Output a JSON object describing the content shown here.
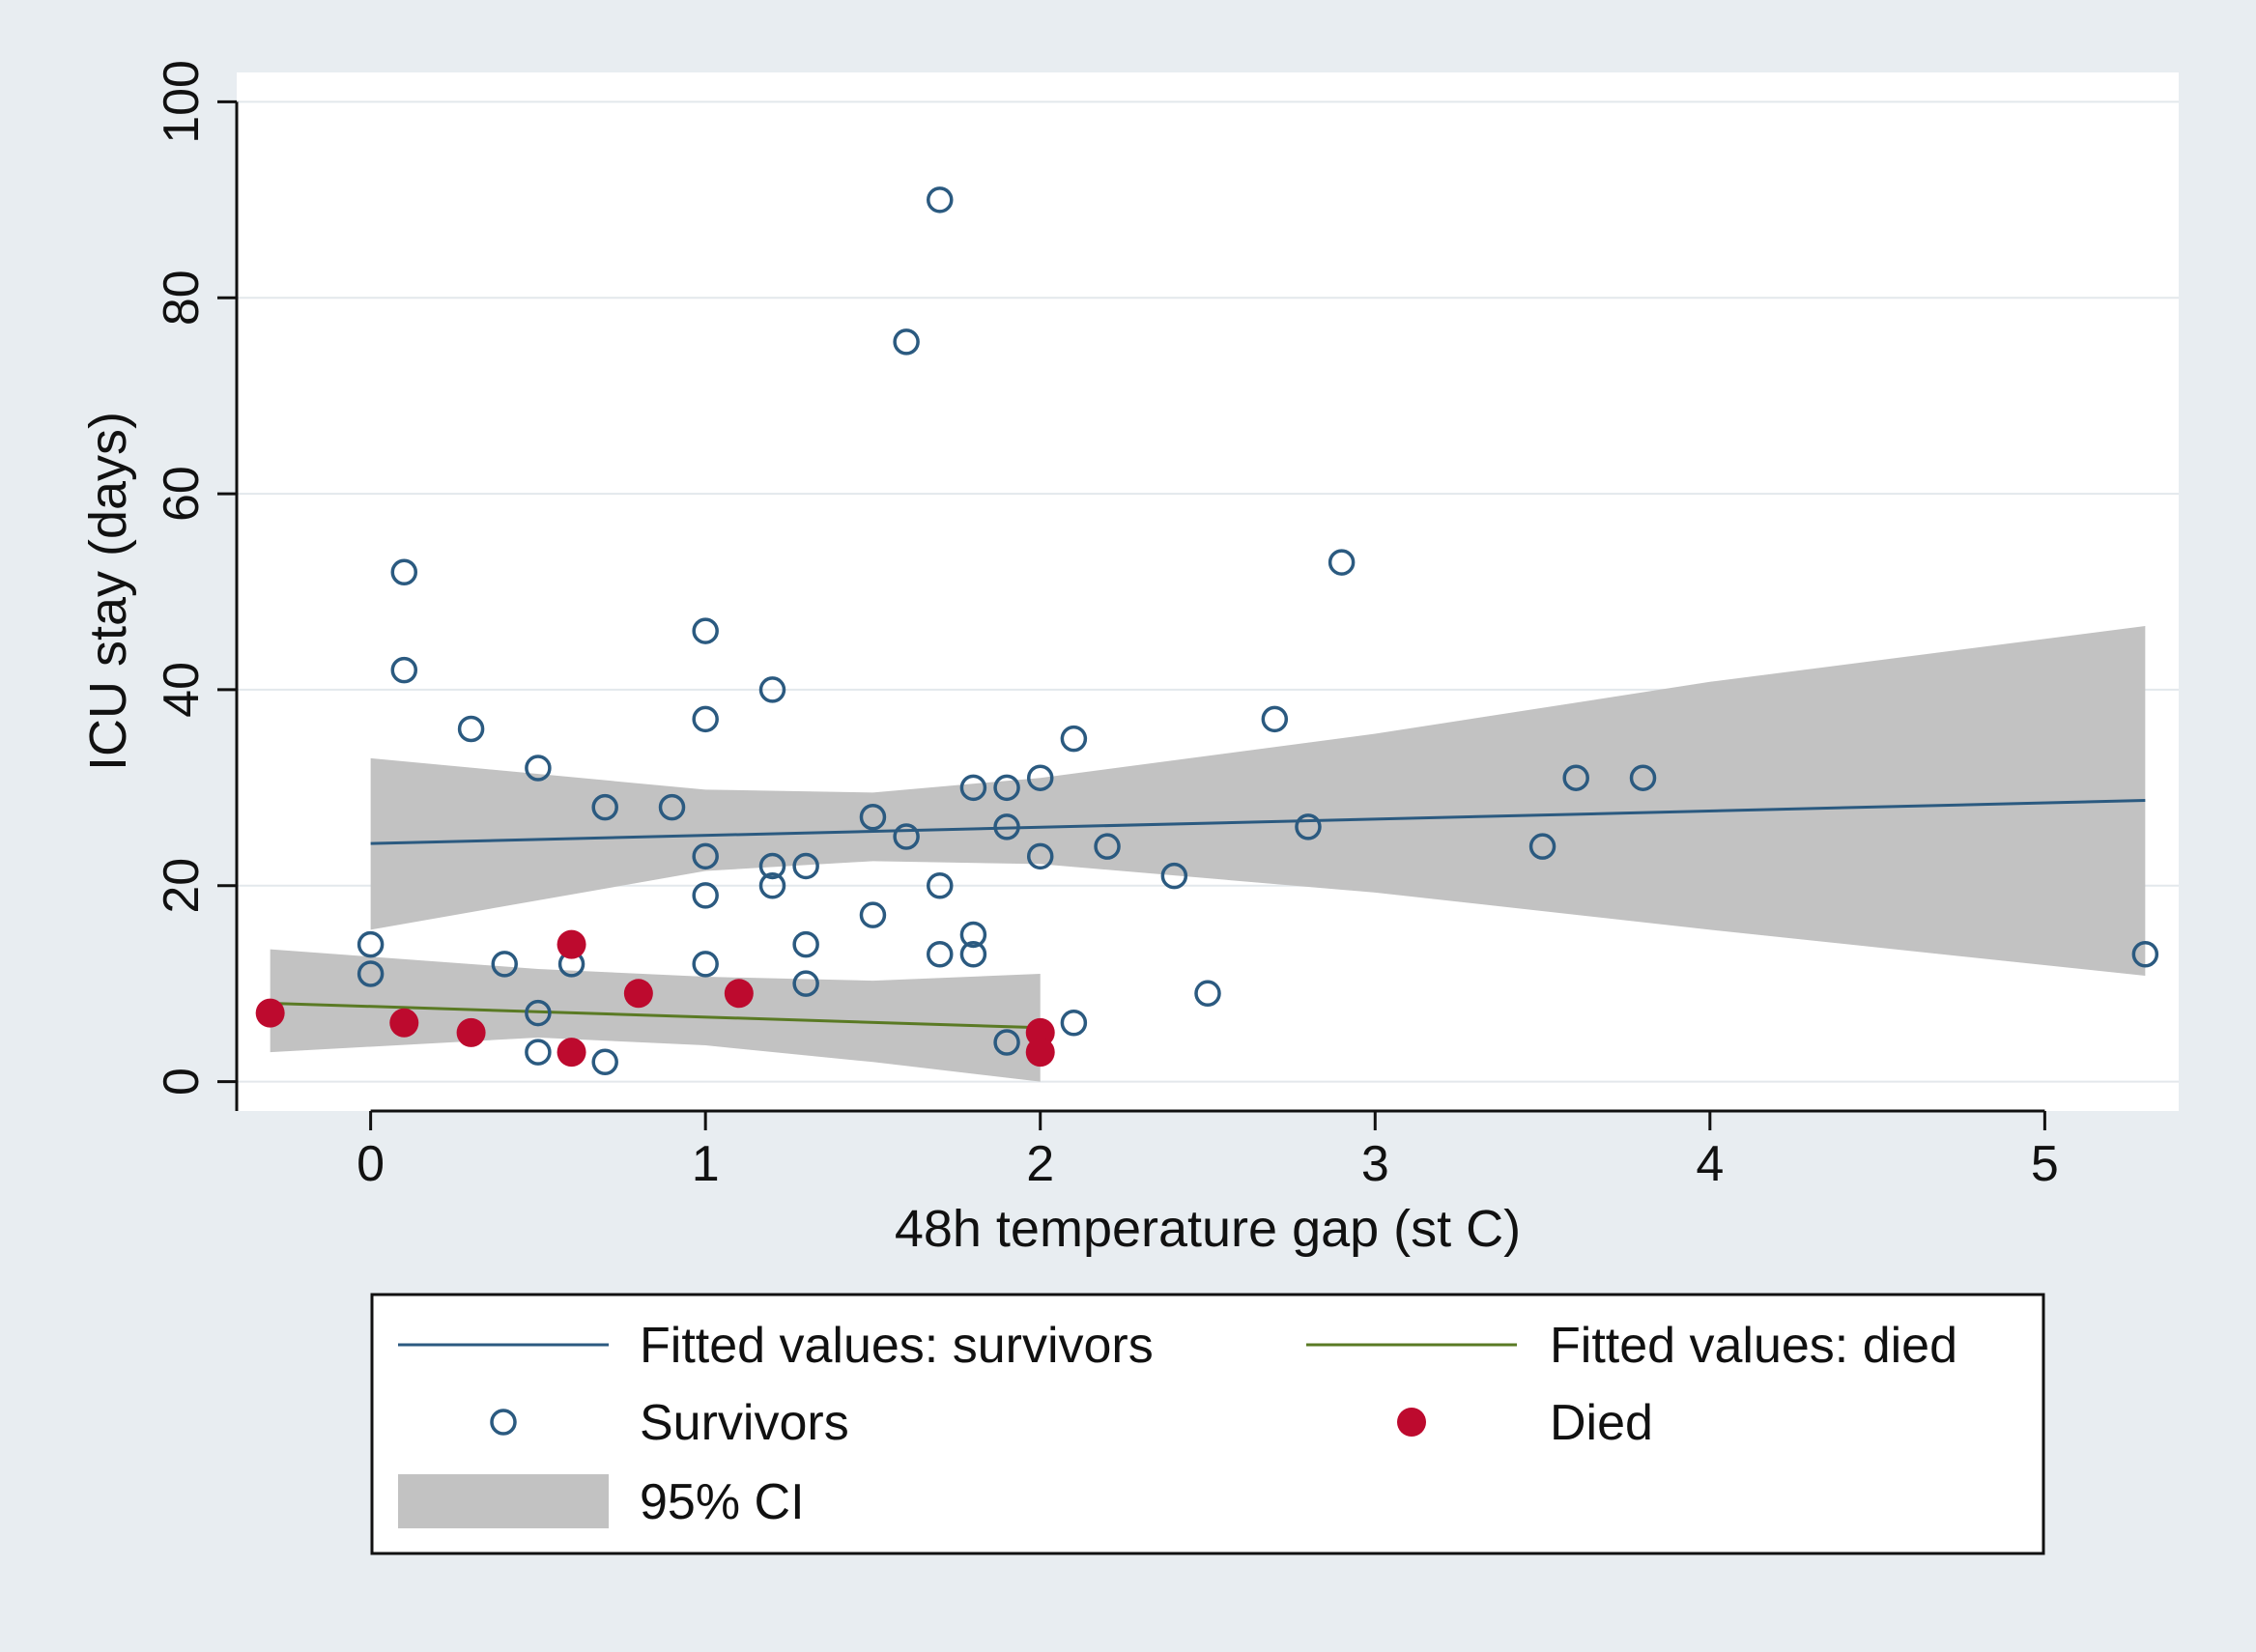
{
  "chart_data": {
    "type": "scatter",
    "title": "",
    "xlabel": "48h temperature gap (st C)",
    "ylabel": "ICU stay (days)",
    "xlim": [
      -0.4,
      5.4
    ],
    "ylim": [
      -3,
      103
    ],
    "xticks": [
      0,
      1,
      2,
      3,
      4,
      5
    ],
    "yticks": [
      0,
      20,
      40,
      60,
      80,
      100
    ],
    "grid": "horizontal",
    "legend_position": "bottom",
    "colors": {
      "outer_background": "#e8edf1",
      "plot_background": "#ffffff",
      "survivors": "#2b5a80",
      "died": "#bd0a2e",
      "fit_died": "#5a7a24",
      "ci": "#c2c2c2"
    },
    "series": [
      {
        "name": "Survivors",
        "kind": "scatter",
        "marker": "hollow-circle",
        "points": [
          [
            0.0,
            14
          ],
          [
            0.0,
            11
          ],
          [
            0.1,
            52
          ],
          [
            0.1,
            42
          ],
          [
            0.3,
            36
          ],
          [
            0.4,
            12
          ],
          [
            0.5,
            32
          ],
          [
            0.5,
            7
          ],
          [
            0.5,
            3
          ],
          [
            0.6,
            12
          ],
          [
            0.7,
            28
          ],
          [
            0.7,
            2
          ],
          [
            0.9,
            28
          ],
          [
            1.0,
            46
          ],
          [
            1.0,
            37
          ],
          [
            1.0,
            23
          ],
          [
            1.0,
            19
          ],
          [
            1.0,
            12
          ],
          [
            1.2,
            40
          ],
          [
            1.2,
            22
          ],
          [
            1.2,
            20
          ],
          [
            1.3,
            22
          ],
          [
            1.3,
            14
          ],
          [
            1.3,
            10
          ],
          [
            1.5,
            27
          ],
          [
            1.5,
            17
          ],
          [
            1.6,
            75.5
          ],
          [
            1.6,
            25
          ],
          [
            1.7,
            90
          ],
          [
            1.7,
            20
          ],
          [
            1.7,
            13
          ],
          [
            1.8,
            30
          ],
          [
            1.8,
            15
          ],
          [
            1.8,
            13
          ],
          [
            1.9,
            30
          ],
          [
            1.9,
            26
          ],
          [
            1.9,
            4
          ],
          [
            2.0,
            31
          ],
          [
            2.0,
            23
          ],
          [
            2.1,
            35
          ],
          [
            2.1,
            6
          ],
          [
            2.2,
            24
          ],
          [
            2.4,
            21
          ],
          [
            2.5,
            9
          ],
          [
            2.7,
            37
          ],
          [
            2.8,
            26
          ],
          [
            2.9,
            53
          ],
          [
            3.5,
            24
          ],
          [
            3.6,
            31
          ],
          [
            3.8,
            31
          ],
          [
            5.3,
            13
          ]
        ]
      },
      {
        "name": "Died",
        "kind": "scatter",
        "marker": "filled-circle",
        "points": [
          [
            -0.3,
            7
          ],
          [
            0.1,
            6
          ],
          [
            0.3,
            5
          ],
          [
            0.6,
            14
          ],
          [
            0.6,
            3
          ],
          [
            0.8,
            9
          ],
          [
            1.1,
            9
          ],
          [
            2.0,
            5
          ],
          [
            2.0,
            3
          ]
        ]
      },
      {
        "name": "Fitted values: survivors",
        "kind": "line",
        "points": [
          [
            0.0,
            24.3
          ],
          [
            5.3,
            28.7
          ]
        ],
        "ci": [
          [
            0.0,
            15.5,
            33.0
          ],
          [
            1.0,
            21.5,
            29.8
          ],
          [
            1.5,
            22.5,
            29.5
          ],
          [
            2.0,
            22.2,
            31.0
          ],
          [
            3.0,
            19.3,
            35.5
          ],
          [
            4.0,
            15.5,
            40.8
          ],
          [
            5.3,
            10.8,
            46.5
          ]
        ]
      },
      {
        "name": "Fitted values: died",
        "kind": "line",
        "points": [
          [
            -0.3,
            8.0
          ],
          [
            2.0,
            5.5
          ]
        ],
        "ci": [
          [
            -0.3,
            3.0,
            13.5
          ],
          [
            0.5,
            4.5,
            11.5
          ],
          [
            1.0,
            3.7,
            10.7
          ],
          [
            1.5,
            2.0,
            10.3
          ],
          [
            2.0,
            0.0,
            11.0
          ]
        ]
      }
    ],
    "legend": [
      {
        "label": "Fitted values: survivors",
        "symbol": "line-survivors"
      },
      {
        "label": "Fitted values: died",
        "symbol": "line-died"
      },
      {
        "label": "Survivors",
        "symbol": "hollow-circle"
      },
      {
        "label": "Died",
        "symbol": "filled-circle"
      },
      {
        "label": "95% CI",
        "symbol": "ci-box"
      }
    ]
  }
}
